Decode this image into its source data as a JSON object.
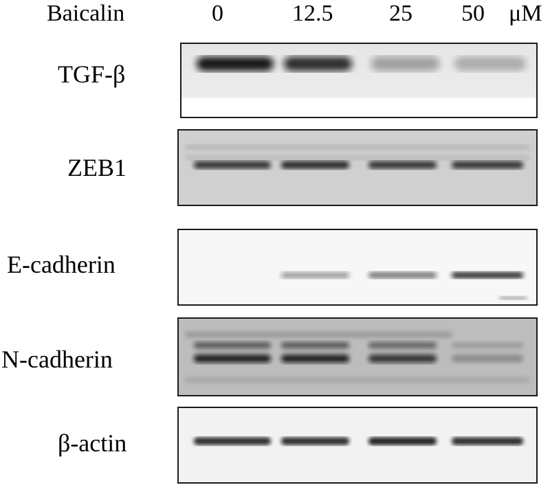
{
  "header": {
    "treatment": "Baicalin",
    "concentrations": [
      "0",
      "12.5",
      "25",
      "50"
    ],
    "unit": "μM"
  },
  "rows": [
    {
      "label": "TGF-β",
      "bands": [
        0.95,
        0.85,
        0.35,
        0.25
      ]
    },
    {
      "label": "ZEB1",
      "bands": [
        0.8,
        0.85,
        0.8,
        0.8
      ]
    },
    {
      "label": "E-cadherin",
      "bands": [
        0.0,
        0.4,
        0.55,
        0.85
      ]
    },
    {
      "label": "N-cadherin",
      "bands": [
        0.9,
        0.9,
        0.8,
        0.25
      ]
    },
    {
      "label": "β-actin",
      "bands": [
        0.85,
        0.85,
        0.9,
        0.85
      ]
    }
  ],
  "colors": {
    "band": "#111111",
    "background_light": "#f4f4f4",
    "background_gray": "#c9c9c9"
  }
}
